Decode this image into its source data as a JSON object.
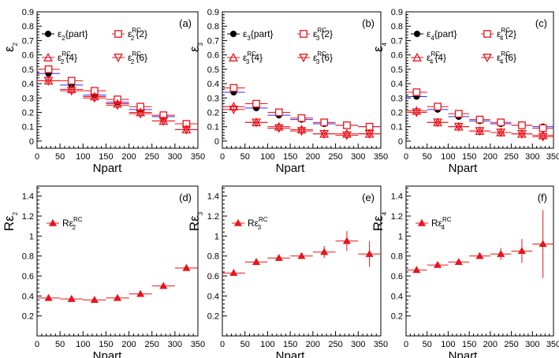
{
  "colors": {
    "part": "#000000",
    "rc": "#e8141c",
    "blue_bar": "#2b2bff"
  },
  "chart_data": [
    {
      "id": "a",
      "type": "scatter",
      "tag": "(a)",
      "xlabel": "Npart",
      "ylabel": "ε",
      "ylabel_sub": "2",
      "xlim": [
        0,
        350
      ],
      "ylim": [
        -0.05,
        0.9
      ],
      "xticks": [
        0,
        50,
        100,
        150,
        200,
        250,
        300,
        350
      ],
      "yticks": [
        0,
        0.1,
        0.2,
        0.3,
        0.4,
        0.5,
        0.6,
        0.7,
        0.8,
        0.9
      ],
      "x": [
        25,
        75,
        125,
        175,
        225,
        275,
        325
      ],
      "series": [
        {
          "name": "ε{part}",
          "sub": "2",
          "sup": "",
          "br": "{part}",
          "marker": "circle-filled",
          "color": "#000000",
          "values": [
            0.47,
            0.39,
            0.32,
            0.27,
            0.22,
            0.17,
            0.12
          ]
        },
        {
          "name": "ε{2}",
          "sub": "2",
          "sup": "RC",
          "br": "{2}",
          "marker": "square-open",
          "color": "#e8141c",
          "values": [
            0.5,
            0.42,
            0.35,
            0.29,
            0.24,
            0.18,
            0.12
          ]
        },
        {
          "name": "ε{4}",
          "sub": "2",
          "sup": "RC",
          "br": "{4}",
          "marker": "triangle-up-open",
          "color": "#e8141c",
          "values": [
            0.42,
            0.36,
            0.31,
            0.26,
            0.2,
            0.14,
            0.08
          ]
        },
        {
          "name": "ε{6}",
          "sub": "2",
          "sup": "RC",
          "br": "{6}",
          "marker": "triangle-down-open",
          "color": "#e8141c",
          "values": [
            0.42,
            0.35,
            0.3,
            0.25,
            0.19,
            0.14,
            0.08
          ]
        }
      ]
    },
    {
      "id": "b",
      "type": "scatter",
      "tag": "(b)",
      "xlabel": "Npart",
      "ylabel": "ε",
      "ylabel_sub": "3",
      "xlim": [
        0,
        350
      ],
      "ylim": [
        -0.05,
        0.9
      ],
      "xticks": [
        0,
        50,
        100,
        150,
        200,
        250,
        300,
        350
      ],
      "yticks": [
        0,
        0.1,
        0.2,
        0.3,
        0.4,
        0.5,
        0.6,
        0.7,
        0.8,
        0.9
      ],
      "x": [
        25,
        75,
        125,
        175,
        225,
        275,
        325
      ],
      "series": [
        {
          "name": "ε{part}",
          "sub": "3",
          "sup": "",
          "br": "{part}",
          "marker": "circle-filled",
          "color": "#000000",
          "values": [
            0.34,
            0.23,
            0.18,
            0.15,
            0.12,
            0.11,
            0.1
          ]
        },
        {
          "name": "ε{2}",
          "sub": "3",
          "sup": "RC",
          "br": "{2}",
          "marker": "square-open",
          "color": "#e8141c",
          "values": [
            0.37,
            0.26,
            0.2,
            0.16,
            0.13,
            0.11,
            0.1
          ]
        },
        {
          "name": "ε{4}",
          "sub": "3",
          "sup": "RC",
          "br": "{4}",
          "marker": "triangle-up-open",
          "color": "#e8141c",
          "values": [
            0.24,
            0.13,
            0.1,
            0.08,
            0.05,
            0.05,
            0.05
          ]
        },
        {
          "name": "ε{6}",
          "sub": "3",
          "sup": "RC",
          "br": "{6}",
          "marker": "triangle-down-open",
          "color": "#e8141c",
          "values": [
            0.22,
            0.13,
            0.09,
            0.07,
            0.05,
            0.04,
            0.05
          ]
        }
      ]
    },
    {
      "id": "c",
      "type": "scatter",
      "tag": "(c)",
      "xlabel": "Npart",
      "ylabel": "ε",
      "ylabel_sub": "4",
      "xlim": [
        0,
        350
      ],
      "ylim": [
        -0.05,
        0.9
      ],
      "xticks": [
        0,
        50,
        100,
        150,
        200,
        250,
        300,
        350
      ],
      "yticks": [
        0,
        0.1,
        0.2,
        0.3,
        0.4,
        0.5,
        0.6,
        0.7,
        0.8,
        0.9
      ],
      "x": [
        25,
        75,
        125,
        175,
        225,
        275,
        325
      ],
      "series": [
        {
          "name": "ε{part}",
          "sub": "4",
          "sup": "",
          "br": "{part}",
          "marker": "circle-filled",
          "color": "#000000",
          "values": [
            0.31,
            0.22,
            0.17,
            0.14,
            0.12,
            0.11,
            0.1
          ]
        },
        {
          "name": "ε{2}",
          "sub": "4",
          "sup": "RC",
          "br": "{2}",
          "marker": "square-open",
          "color": "#e8141c",
          "values": [
            0.34,
            0.24,
            0.19,
            0.15,
            0.13,
            0.11,
            0.09
          ]
        },
        {
          "name": "ε{4}",
          "sub": "4",
          "sup": "RC",
          "br": "{4}",
          "marker": "triangle-up-open",
          "color": "#e8141c",
          "values": [
            0.21,
            0.13,
            0.1,
            0.07,
            0.06,
            0.05,
            0.04
          ]
        },
        {
          "name": "ε{6}",
          "sub": "4",
          "sup": "RC",
          "br": "{6}",
          "marker": "triangle-down-open",
          "color": "#e8141c",
          "values": [
            0.2,
            0.13,
            0.1,
            0.07,
            0.06,
            0.05,
            0.03
          ]
        }
      ]
    },
    {
      "id": "d",
      "type": "scatter",
      "tag": "(d)",
      "xlabel": "Npart",
      "ylabel": "Rε",
      "ylabel_sub": "2",
      "xlim": [
        0,
        350
      ],
      "ylim": [
        0,
        1.5
      ],
      "xticks": [
        0,
        50,
        100,
        150,
        200,
        250,
        300,
        350
      ],
      "yticks": [
        0.2,
        0.4,
        0.6,
        0.8,
        1,
        1.2,
        1.4
      ],
      "x": [
        25,
        75,
        125,
        175,
        225,
        275,
        325
      ],
      "errors": [
        0.005,
        0.005,
        0.005,
        0.005,
        0.005,
        0.01,
        0.01
      ],
      "series": [
        {
          "name": "Rε",
          "sub": "2",
          "sup": "RC",
          "br": "",
          "marker": "triangle-up-filled",
          "color": "#e8141c",
          "values": [
            0.38,
            0.37,
            0.36,
            0.38,
            0.42,
            0.5,
            0.68
          ]
        }
      ]
    },
    {
      "id": "e",
      "type": "scatter",
      "tag": "(e)",
      "xlabel": "Npart",
      "ylabel": "Rε",
      "ylabel_sub": "3",
      "xlim": [
        0,
        350
      ],
      "ylim": [
        0,
        1.5
      ],
      "xticks": [
        0,
        50,
        100,
        150,
        200,
        250,
        300,
        350
      ],
      "yticks": [
        0.2,
        0.4,
        0.6,
        0.8,
        1,
        1.2,
        1.4
      ],
      "x": [
        25,
        75,
        125,
        175,
        225,
        275,
        325
      ],
      "errors": [
        0.01,
        0.01,
        0.01,
        0.03,
        0.06,
        0.1,
        0.13
      ],
      "series": [
        {
          "name": "Rε",
          "sub": "3",
          "sup": "RC",
          "br": "",
          "marker": "triangle-up-filled",
          "color": "#e8141c",
          "values": [
            0.63,
            0.74,
            0.78,
            0.8,
            0.84,
            0.95,
            0.82
          ]
        }
      ]
    },
    {
      "id": "f",
      "type": "scatter",
      "tag": "(f)",
      "xlabel": "Npart",
      "ylabel": "Rε",
      "ylabel_sub": "4",
      "xlim": [
        0,
        350
      ],
      "ylim": [
        0,
        1.5
      ],
      "xticks": [
        0,
        50,
        100,
        150,
        200,
        250,
        300,
        350
      ],
      "yticks": [
        0.2,
        0.4,
        0.6,
        0.8,
        1,
        1.2,
        1.4
      ],
      "x": [
        25,
        75,
        125,
        175,
        225,
        275,
        325
      ],
      "errors": [
        0.01,
        0.01,
        0.01,
        0.03,
        0.06,
        0.12,
        0.34
      ],
      "series": [
        {
          "name": "Rε",
          "sub": "4",
          "sup": "RC",
          "br": "",
          "marker": "triangle-up-filled",
          "color": "#e8141c",
          "values": [
            0.66,
            0.71,
            0.74,
            0.8,
            0.82,
            0.85,
            0.92
          ]
        }
      ]
    }
  ]
}
